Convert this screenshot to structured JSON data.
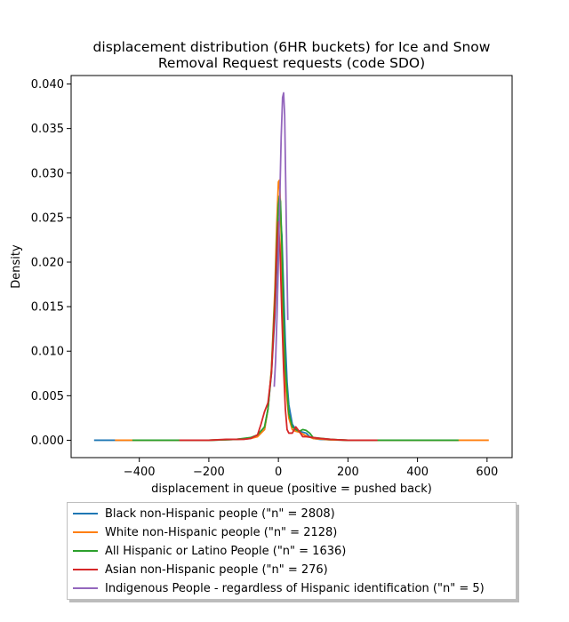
{
  "chart_data": {
    "type": "line",
    "title": "displacement distribution (6HR buckets) for Ice and Snow\nRemoval Request requests (code SDO)",
    "xlabel": "displacement in queue (positive = pushed back)",
    "ylabel": "Density",
    "xlim": [
      -596,
      672
    ],
    "ylim": [
      -0.00195,
      0.04095
    ],
    "xticks": [
      -400,
      -200,
      0,
      200,
      400,
      600
    ],
    "yticks": [
      0.0,
      0.005,
      0.01,
      0.015,
      0.02,
      0.025,
      0.03,
      0.035,
      0.04
    ],
    "xtick_labels": [
      "−400",
      "−200",
      "0",
      "200",
      "400",
      "600"
    ],
    "ytick_labels": [
      "0.000",
      "0.005",
      "0.010",
      "0.015",
      "0.020",
      "0.025",
      "0.030",
      "0.035",
      "0.040"
    ],
    "grid": false,
    "legend_position": "below",
    "series": [
      {
        "name": "Black non-Hispanic people (\"n\" = 2808)",
        "color": "#1f77b4",
        "x": [
          -530,
          -400,
          -200,
          -120,
          -80,
          -60,
          -40,
          -30,
          -20,
          -10,
          -5,
          0,
          5,
          10,
          15,
          20,
          25,
          30,
          40,
          50,
          60,
          70,
          80,
          90,
          100,
          120,
          150,
          200,
          300,
          400,
          520
        ],
        "y": [
          0,
          0,
          0,
          0.0001,
          0.0002,
          0.0005,
          0.0012,
          0.0035,
          0.0075,
          0.014,
          0.019,
          0.0245,
          0.0255,
          0.023,
          0.017,
          0.011,
          0.0065,
          0.004,
          0.0018,
          0.0012,
          0.001,
          0.0009,
          0.0008,
          0.0004,
          0.0002,
          0.0001,
          5e-05,
          0,
          0,
          0,
          0
        ]
      },
      {
        "name": "White non-Hispanic people (\"n\" = 2128)",
        "color": "#ff7f0e",
        "x": [
          -470,
          -400,
          -200,
          -120,
          -80,
          -60,
          -40,
          -30,
          -20,
          -10,
          -5,
          0,
          3,
          6,
          10,
          15,
          20,
          30,
          40,
          50,
          60,
          80,
          100,
          150,
          200,
          300,
          400,
          500,
          605
        ],
        "y": [
          0,
          0,
          0,
          0.0001,
          0.0002,
          0.0004,
          0.0012,
          0.0035,
          0.008,
          0.017,
          0.024,
          0.029,
          0.0292,
          0.0265,
          0.019,
          0.012,
          0.0065,
          0.0025,
          0.0012,
          0.001,
          0.0009,
          0.0005,
          0.0002,
          5e-05,
          0,
          0,
          0,
          0,
          0
        ]
      },
      {
        "name": "All Hispanic or Latino People (\"n\" = 1636)",
        "color": "#2ca02c",
        "x": [
          -420,
          -300,
          -200,
          -120,
          -80,
          -60,
          -40,
          -30,
          -20,
          -10,
          -5,
          0,
          3,
          6,
          10,
          15,
          20,
          30,
          40,
          50,
          60,
          70,
          80,
          90,
          100,
          150,
          200,
          300,
          400,
          518
        ],
        "y": [
          0,
          0,
          0,
          0.0001,
          0.0003,
          0.0006,
          0.0015,
          0.0035,
          0.0078,
          0.016,
          0.022,
          0.0265,
          0.0274,
          0.0268,
          0.022,
          0.014,
          0.008,
          0.003,
          0.0015,
          0.0012,
          0.001,
          0.0012,
          0.0011,
          0.0008,
          0.0003,
          0.0001,
          0,
          0,
          0,
          0
        ]
      },
      {
        "name": "Asian non-Hispanic people (\"n\" = 276)",
        "color": "#d62728",
        "x": [
          -285,
          -200,
          -150,
          -120,
          -100,
          -80,
          -60,
          -50,
          -40,
          -30,
          -20,
          -10,
          -5,
          0,
          5,
          10,
          15,
          20,
          25,
          30,
          40,
          50,
          60,
          70,
          80,
          100,
          120,
          150,
          200,
          285
        ],
        "y": [
          0,
          0,
          0.0001,
          0.0001,
          0.0001,
          0.0002,
          0.0006,
          0.0018,
          0.0032,
          0.0042,
          0.0075,
          0.015,
          0.021,
          0.0245,
          0.021,
          0.014,
          0.008,
          0.0035,
          0.0012,
          0.0008,
          0.0008,
          0.0015,
          0.001,
          0.0004,
          0.0004,
          0.0003,
          0.0002,
          0.0001,
          0,
          0
        ]
      },
      {
        "name": "Indigenous People - regardless of Hispanic identification (\"n\" = 5)",
        "color": "#9467bd",
        "x": [
          -12,
          -8,
          -4,
          0,
          4,
          8,
          12,
          15,
          18,
          21,
          24,
          27
        ],
        "y": [
          0.006,
          0.009,
          0.014,
          0.02,
          0.027,
          0.034,
          0.0385,
          0.039,
          0.0365,
          0.029,
          0.021,
          0.0135
        ]
      }
    ]
  }
}
